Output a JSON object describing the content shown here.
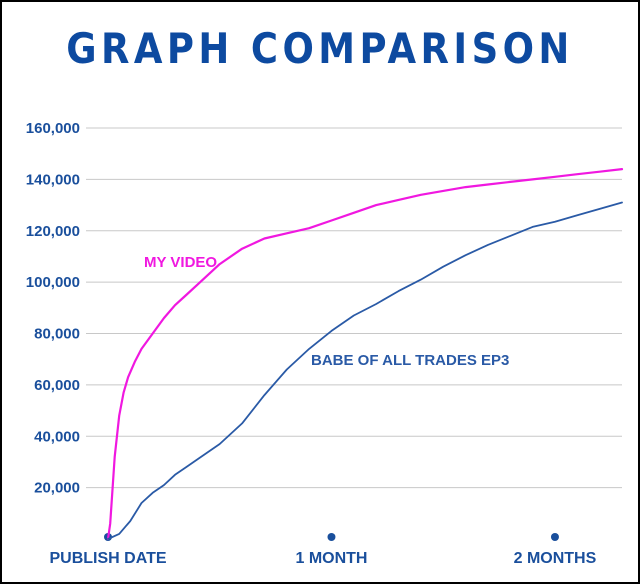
{
  "title": "GRAPH COMPARISON",
  "colors": {
    "title": "#0d4aa0",
    "axis_text": "#1a4f9c",
    "grid": "#c8c8c8",
    "my_video": "#f018e0",
    "babe": "#2a5aa6",
    "marker": "#1a4f9c"
  },
  "chart_data": {
    "type": "line",
    "title": "GRAPH COMPARISON",
    "xlabel": "",
    "ylabel": "",
    "ylim": [
      0,
      160000
    ],
    "y_ticks": [
      20000,
      40000,
      60000,
      80000,
      100000,
      120000,
      140000,
      160000
    ],
    "y_tick_labels": [
      "20,000",
      "40,000",
      "60,000",
      "80,000",
      "100,000",
      "120,000",
      "140,000",
      "160,000"
    ],
    "xlim": [
      0,
      2.3
    ],
    "x_unit": "months since publish date",
    "x_ticks": [
      {
        "value": 0,
        "label": "PUBLISH DATE"
      },
      {
        "value": 1,
        "label": "1 MONTH"
      },
      {
        "value": 2,
        "label": "2 MONTHS"
      }
    ],
    "grid": true,
    "series": [
      {
        "name": "MY VIDEO",
        "color": "#f018e0",
        "x": [
          0,
          0.01,
          0.03,
          0.05,
          0.07,
          0.09,
          0.12,
          0.15,
          0.2,
          0.25,
          0.3,
          0.35,
          0.4,
          0.5,
          0.6,
          0.7,
          0.8,
          0.9,
          1.0,
          1.1,
          1.2,
          1.3,
          1.4,
          1.5,
          1.6,
          1.7,
          1.8,
          1.9,
          2.0,
          2.1,
          2.2,
          2.3
        ],
        "y": [
          0,
          6000,
          32000,
          48000,
          57000,
          63000,
          69000,
          74000,
          80000,
          86000,
          91000,
          95000,
          99000,
          107000,
          113000,
          117000,
          119000,
          121000,
          124000,
          127000,
          130000,
          132000,
          134000,
          135500,
          137000,
          138000,
          139000,
          140000,
          141000,
          142000,
          143000,
          144000
        ]
      },
      {
        "name": "BABE OF ALL TRADES EP3",
        "color": "#2a5aa6",
        "x": [
          0,
          0.05,
          0.1,
          0.15,
          0.2,
          0.25,
          0.3,
          0.35,
          0.4,
          0.5,
          0.6,
          0.7,
          0.8,
          0.9,
          1.0,
          1.1,
          1.2,
          1.3,
          1.4,
          1.5,
          1.6,
          1.7,
          1.8,
          1.9,
          2.0,
          2.1,
          2.2,
          2.3
        ],
        "y": [
          0,
          2000,
          7000,
          14000,
          18000,
          21000,
          25000,
          28000,
          31000,
          37000,
          45000,
          56000,
          66000,
          74000,
          81000,
          87000,
          91500,
          96500,
          101000,
          106000,
          110500,
          114500,
          118000,
          121500,
          123500,
          126000,
          128500,
          131000
        ]
      }
    ],
    "annotations": [
      {
        "text": "MY VIDEO",
        "series": 0
      },
      {
        "text": "BABE OF ALL TRADES EP3",
        "series": 1
      }
    ]
  }
}
